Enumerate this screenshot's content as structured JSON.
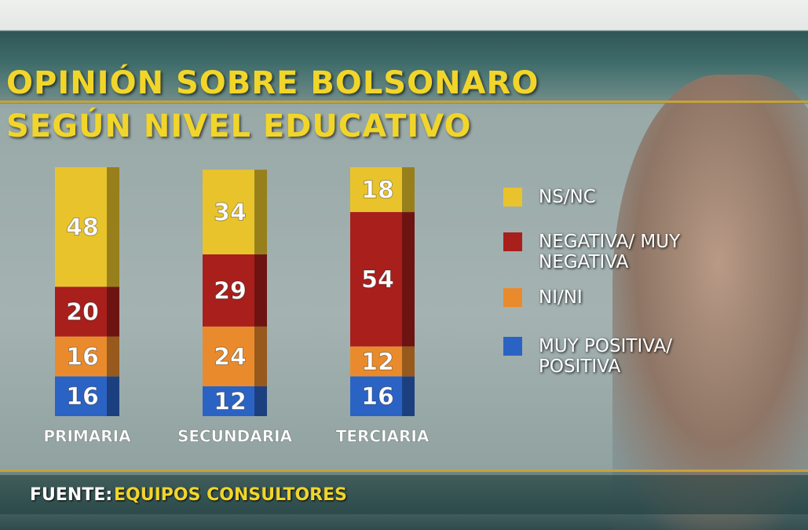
{
  "chart_data": {
    "type": "stacked-bar",
    "title": [
      "OPINIÓN SOBRE BOLSONARO",
      "SEGÚN NIVEL EDUCATIVO"
    ],
    "categories": [
      "PRIMARIA",
      "SECUNDARIA",
      "TERCIARIA"
    ],
    "series": [
      {
        "name": "MUY POSITIVA/ POSITIVA",
        "color": "#2b63c4",
        "values": [
          16,
          12,
          16
        ]
      },
      {
        "name": "NI/NI",
        "color": "#e98b2c",
        "values": [
          16,
          24,
          12
        ]
      },
      {
        "name": "NEGATIVA/ MUY NEGATIVA",
        "color": "#a81f1c",
        "values": [
          20,
          29,
          54
        ]
      },
      {
        "name": "NS/NC",
        "color": "#e9c32c",
        "values": [
          48,
          34,
          18
        ]
      }
    ],
    "source": {
      "label": "FUENTE:",
      "text": "EQUIPOS CONSULTORES"
    }
  }
}
